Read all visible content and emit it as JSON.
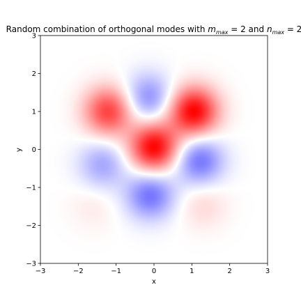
{
  "chart_data": {
    "type": "heatmap",
    "title": "Random combination of orthogonal modes with m_max = 2 and n_max = 2",
    "title_parts": {
      "prefix": "Random combination of orthogonal modes with ",
      "m_symbol": "m",
      "m_sub": "max",
      "m_eq": " = 2",
      "and": " and ",
      "n_symbol": "n",
      "n_sub": "max",
      "n_eq": " = 2"
    },
    "xlabel": "x",
    "ylabel": "y",
    "xlim": [
      -3,
      3
    ],
    "ylim": [
      -3,
      3
    ],
    "xticks": [
      -3,
      -2,
      -1,
      0,
      1,
      2,
      3
    ],
    "yticks": [
      -3,
      -2,
      -1,
      0,
      1,
      2,
      3
    ],
    "colormap": "bwr",
    "color_negative": "#0000ff",
    "color_zero": "#ffffff",
    "color_positive": "#ff0000",
    "grid": false,
    "lobes": [
      {
        "x": 0.0,
        "y": 0.05,
        "amplitude": 1.0,
        "sign": "positive"
      },
      {
        "x": 1.05,
        "y": 1.0,
        "amplitude": 1.0,
        "sign": "positive"
      },
      {
        "x": -1.2,
        "y": 1.0,
        "amplitude": 0.75,
        "sign": "positive"
      },
      {
        "x": -0.15,
        "y": 1.35,
        "amplitude": 0.45,
        "sign": "negative"
      },
      {
        "x": -0.1,
        "y": -1.2,
        "amplitude": 0.55,
        "sign": "negative"
      },
      {
        "x": 1.2,
        "y": -0.3,
        "amplitude": 0.55,
        "sign": "negative"
      },
      {
        "x": -1.35,
        "y": -0.4,
        "amplitude": 0.35,
        "sign": "negative"
      },
      {
        "x": 1.3,
        "y": -1.45,
        "amplitude": 0.15,
        "sign": "positive"
      },
      {
        "x": -1.6,
        "y": -1.5,
        "amplitude": 0.08,
        "sign": "positive"
      }
    ]
  }
}
